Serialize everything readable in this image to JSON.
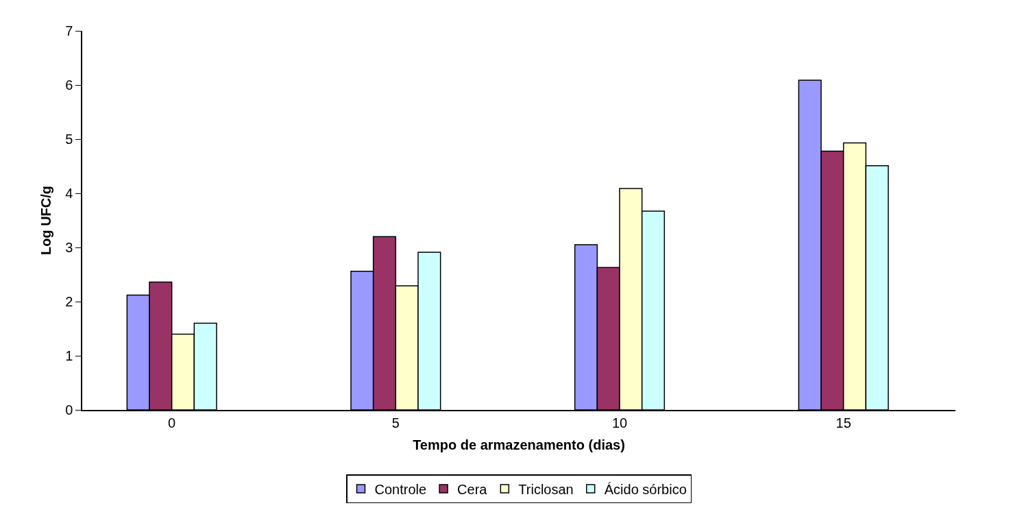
{
  "chart_data": {
    "type": "bar",
    "xlabel": "Tempo de armazenamento (dias)",
    "ylabel": "Log UFC/g",
    "categories": [
      "0",
      "5",
      "10",
      "15"
    ],
    "series": [
      {
        "name": "Controle",
        "color": "#9999ff",
        "values": [
          2.12,
          2.56,
          3.05,
          6.09
        ]
      },
      {
        "name": "Cera",
        "color": "#993366",
        "values": [
          2.36,
          3.2,
          2.63,
          4.78
        ]
      },
      {
        "name": "Triclosan",
        "color": "#ffffcc",
        "values": [
          1.4,
          2.29,
          4.09,
          4.93
        ]
      },
      {
        "name": "Ácido sórbico",
        "color": "#ccffff",
        "values": [
          1.6,
          2.91,
          3.67,
          4.51
        ]
      }
    ],
    "ylim": [
      0,
      7
    ],
    "yticks": [
      0,
      1,
      2,
      3,
      4,
      5,
      6,
      7
    ],
    "legend": "bottom"
  }
}
